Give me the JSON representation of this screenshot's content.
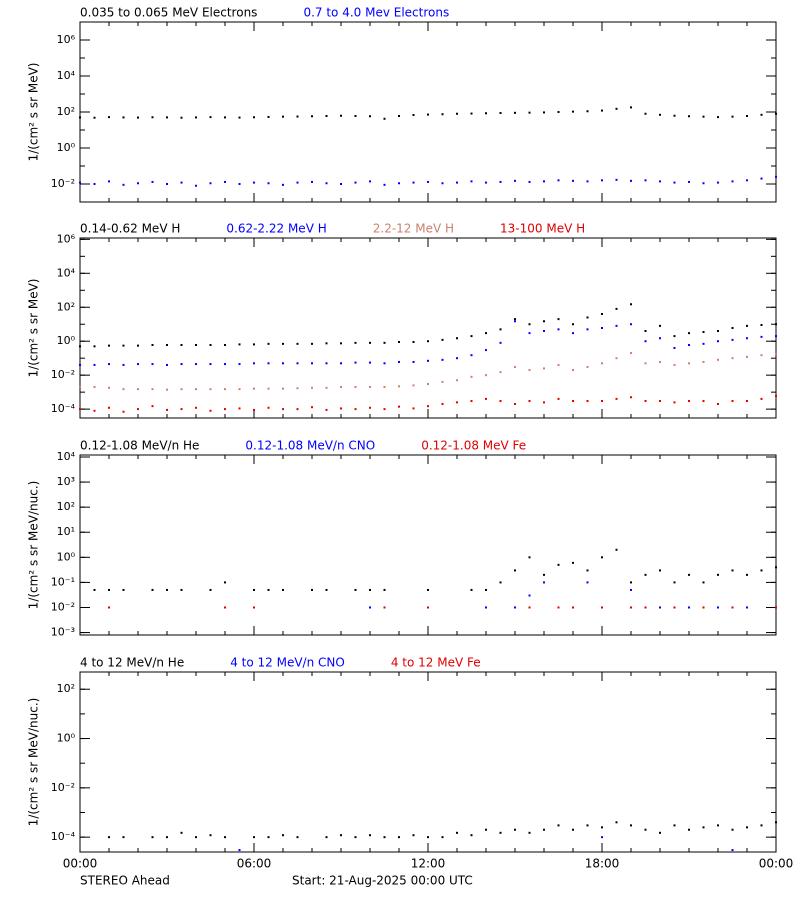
{
  "chart_data": [
    {
      "type": "scatter",
      "log_y": true,
      "ylabel": "1/(cm² s sr MeV)",
      "x": [
        0,
        0.5,
        1,
        1.5,
        2,
        2.5,
        3,
        3.5,
        4,
        4.5,
        5,
        5.5,
        6,
        6.5,
        7,
        7.5,
        8,
        8.5,
        9,
        9.5,
        10,
        10.5,
        11,
        11.5,
        12,
        12.5,
        13,
        13.5,
        14,
        14.5,
        15,
        15.5,
        16,
        16.5,
        17,
        17.5,
        18,
        18.5,
        19,
        19.5,
        20,
        20.5,
        21,
        21.5,
        22,
        22.5,
        23,
        23.5,
        24
      ],
      "xlim": [
        0,
        24
      ],
      "xticks": [
        0,
        6,
        12,
        18,
        24
      ],
      "ylim": [
        0.001,
        10000000
      ],
      "yticks": [
        {
          "value": 0.01,
          "label": "10⁻²"
        },
        {
          "value": 1,
          "label": "10⁰"
        },
        {
          "value": 100,
          "label": "10²"
        },
        {
          "value": 10000,
          "label": "10⁴"
        },
        {
          "value": 1000000,
          "label": "10⁶"
        }
      ],
      "series": [
        {
          "name": "0.035 to 0.065 MeV Electrons",
          "color": "#000000",
          "values": [
            50,
            48,
            52,
            50,
            49,
            51,
            50,
            48,
            50,
            52,
            50,
            49,
            51,
            53,
            55,
            56,
            58,
            60,
            62,
            60,
            58,
            42,
            60,
            68,
            72,
            75,
            80,
            82,
            85,
            88,
            90,
            92,
            95,
            100,
            105,
            110,
            120,
            150,
            180,
            80,
            70,
            62,
            58,
            55,
            52,
            55,
            60,
            70,
            80
          ]
        },
        {
          "name": "0.7 to 4.0 Mev Electrons",
          "color": "#0000ff",
          "values": [
            0.012,
            0.01,
            0.014,
            0.009,
            0.011,
            0.013,
            0.01,
            0.012,
            0.008,
            0.011,
            0.013,
            0.01,
            0.012,
            0.011,
            0.009,
            0.012,
            0.013,
            0.011,
            0.01,
            0.012,
            0.014,
            0.009,
            0.011,
            0.012,
            0.013,
            0.011,
            0.012,
            0.014,
            0.012,
            0.013,
            0.015,
            0.013,
            0.014,
            0.016,
            0.015,
            0.014,
            0.016,
            0.017,
            0.015,
            0.016,
            0.014,
            0.012,
            0.013,
            0.011,
            0.012,
            0.014,
            0.016,
            0.02,
            0.025
          ]
        }
      ]
    },
    {
      "type": "scatter",
      "log_y": true,
      "ylabel": "1/(cm² s sr MeV)",
      "x": [
        0,
        0.5,
        1,
        1.5,
        2,
        2.5,
        3,
        3.5,
        4,
        4.5,
        5,
        5.5,
        6,
        6.5,
        7,
        7.5,
        8,
        8.5,
        9,
        9.5,
        10,
        10.5,
        11,
        11.5,
        12,
        12.5,
        13,
        13.5,
        14,
        14.5,
        15,
        15.5,
        16,
        16.5,
        17,
        17.5,
        18,
        18.5,
        19,
        19.5,
        20,
        20.5,
        21,
        21.5,
        22,
        22.5,
        23,
        23.5,
        24
      ],
      "xlim": [
        0,
        24
      ],
      "xticks": [
        0,
        6,
        12,
        18,
        24
      ],
      "ylim": [
        3e-05,
        1200000
      ],
      "yticks": [
        {
          "value": 0.0001,
          "label": "10⁻⁴"
        },
        {
          "value": 0.01,
          "label": "10⁻²"
        },
        {
          "value": 1,
          "label": "10⁰"
        },
        {
          "value": 100,
          "label": "10²"
        },
        {
          "value": 10000,
          "label": "10⁴"
        },
        {
          "value": 1000000,
          "label": "10⁶"
        }
      ],
      "series": [
        {
          "name": "0.14-0.62 MeV H",
          "color": "#000000",
          "values": [
            0.5,
            0.5,
            0.55,
            0.55,
            0.55,
            0.6,
            0.6,
            0.6,
            0.6,
            0.6,
            0.6,
            0.65,
            0.65,
            0.7,
            0.7,
            0.7,
            0.7,
            0.75,
            0.75,
            0.8,
            0.8,
            0.8,
            0.9,
            0.9,
            1,
            1.2,
            1.5,
            2,
            3,
            5,
            20,
            10,
            15,
            20,
            10,
            25,
            40,
            80,
            150,
            4,
            8,
            2,
            3,
            3.5,
            4,
            6,
            8,
            9,
            10
          ]
        },
        {
          "name": "0.62-2.22 MeV H",
          "color": "#0000ff",
          "values": [
            0.04,
            0.04,
            0.045,
            0.04,
            0.045,
            0.045,
            0.04,
            0.045,
            0.045,
            0.045,
            0.045,
            0.045,
            0.05,
            0.05,
            0.05,
            0.05,
            0.05,
            0.05,
            0.05,
            0.055,
            0.055,
            0.05,
            0.06,
            0.06,
            0.07,
            0.08,
            0.1,
            0.15,
            0.3,
            0.8,
            15,
            3,
            4,
            5,
            3,
            5,
            6,
            8,
            10,
            1,
            1.5,
            0.4,
            0.6,
            0.7,
            1,
            1.2,
            1.5,
            1.8,
            2
          ]
        },
        {
          "name": "2.2-12 MeV H",
          "color": "#c8826e",
          "values": [
            0.002,
            0.002,
            0.0018,
            0.0015,
            0.0015,
            0.0015,
            0.0014,
            0.0015,
            0.0015,
            0.0015,
            0.0015,
            0.0015,
            0.0016,
            0.0016,
            0.0016,
            0.0017,
            0.0018,
            0.0018,
            0.002,
            0.002,
            0.002,
            0.002,
            0.0022,
            0.0025,
            0.003,
            0.004,
            0.005,
            0.008,
            0.01,
            0.015,
            0.03,
            0.02,
            0.025,
            0.04,
            0.02,
            0.03,
            0.05,
            0.1,
            0.2,
            0.05,
            0.06,
            0.04,
            0.05,
            0.06,
            0.08,
            0.1,
            0.12,
            0.15,
            0.18
          ]
        },
        {
          "name": "13-100 MeV H",
          "color": "#e00000",
          "values": [
            0.0001,
            8e-05,
            0.00012,
            7e-05,
            0.0001,
            0.00015,
            9e-05,
            0.0001,
            0.00012,
            8e-05,
            0.0001,
            0.00011,
            9e-05,
            0.00012,
            0.0001,
            0.0001,
            0.00013,
            9e-05,
            0.00011,
            0.0001,
            0.00012,
            0.0001,
            0.00014,
            0.00011,
            0.00015,
            0.0002,
            0.00025,
            0.0003,
            0.0004,
            0.0003,
            0.0002,
            0.0003,
            0.00025,
            0.0004,
            0.0003,
            0.0003,
            0.0003,
            0.0004,
            0.0005,
            0.0003,
            0.0003,
            0.00025,
            0.0003,
            0.0003,
            0.0002,
            0.0003,
            0.0003,
            0.0004,
            0.0006
          ]
        }
      ]
    },
    {
      "type": "scatter",
      "log_y": true,
      "ylabel": "1/(cm² s sr MeV/nuc.)",
      "x": [
        0,
        0.5,
        1,
        1.5,
        2,
        2.5,
        3,
        3.5,
        4,
        4.5,
        5,
        5.5,
        6,
        6.5,
        7,
        7.5,
        8,
        8.5,
        9,
        9.5,
        10,
        10.5,
        11,
        11.5,
        12,
        12.5,
        13,
        13.5,
        14,
        14.5,
        15,
        15.5,
        16,
        16.5,
        17,
        17.5,
        18,
        18.5,
        19,
        19.5,
        20,
        20.5,
        21,
        21.5,
        22,
        22.5,
        23,
        23.5,
        24
      ],
      "xlim": [
        0,
        24
      ],
      "xticks": [
        0,
        6,
        12,
        18,
        24
      ],
      "ylim": [
        0.0008,
        12000
      ],
      "yticks": [
        {
          "value": 0.001,
          "label": "10⁻³"
        },
        {
          "value": 0.01,
          "label": "10⁻²"
        },
        {
          "value": 0.1,
          "label": "10⁻¹"
        },
        {
          "value": 1,
          "label": "10⁰"
        },
        {
          "value": 10,
          "label": "10¹"
        },
        {
          "value": 100,
          "label": "10²"
        },
        {
          "value": 1000,
          "label": "10³"
        },
        {
          "value": 10000,
          "label": "10⁴"
        }
      ],
      "series": [
        {
          "name": "0.12-1.08 MeV/n He",
          "color": "#000000",
          "values": [
            null,
            0.05,
            0.05,
            0.05,
            null,
            0.05,
            0.05,
            0.05,
            null,
            0.05,
            0.1,
            null,
            0.05,
            0.05,
            0.05,
            null,
            0.05,
            0.05,
            null,
            0.05,
            0.05,
            0.05,
            null,
            null,
            0.05,
            null,
            null,
            0.05,
            0.05,
            0.1,
            0.3,
            1,
            0.2,
            0.5,
            0.6,
            0.3,
            1,
            2,
            0.1,
            0.2,
            0.3,
            0.1,
            0.2,
            0.1,
            0.2,
            0.3,
            0.2,
            0.3,
            0.4
          ]
        },
        {
          "name": "0.12-1.08 MeV/n CNO",
          "color": "#0000ff",
          "values": [
            null,
            null,
            null,
            null,
            null,
            null,
            null,
            null,
            null,
            null,
            null,
            null,
            null,
            null,
            null,
            null,
            null,
            null,
            null,
            null,
            0.01,
            null,
            null,
            null,
            null,
            null,
            null,
            null,
            0.01,
            null,
            0.01,
            0.03,
            0.1,
            null,
            0.01,
            0.1,
            0.01,
            null,
            0.05,
            null,
            0.01,
            null,
            0.01,
            null,
            0.01,
            null,
            0.01,
            null,
            0.01
          ]
        },
        {
          "name": "0.12-1.08 MeV Fe",
          "color": "#e00000",
          "values": [
            null,
            null,
            0.01,
            null,
            null,
            null,
            null,
            null,
            null,
            null,
            0.01,
            null,
            0.01,
            null,
            null,
            null,
            null,
            null,
            null,
            null,
            null,
            0.01,
            null,
            null,
            0.01,
            null,
            null,
            null,
            null,
            null,
            null,
            0.01,
            null,
            0.01,
            0.01,
            null,
            0.01,
            null,
            0.01,
            0.01,
            null,
            0.01,
            null,
            0.01,
            null,
            0.01,
            null,
            null,
            0.01
          ]
        }
      ]
    },
    {
      "type": "scatter",
      "log_y": true,
      "ylabel": "1/(cm² s sr MeV/nuc.)",
      "x": [
        0,
        0.5,
        1,
        1.5,
        2,
        2.5,
        3,
        3.5,
        4,
        4.5,
        5,
        5.5,
        6,
        6.5,
        7,
        7.5,
        8,
        8.5,
        9,
        9.5,
        10,
        10.5,
        11,
        11.5,
        12,
        12.5,
        13,
        13.5,
        14,
        14.5,
        15,
        15.5,
        16,
        16.5,
        17,
        17.5,
        18,
        18.5,
        19,
        19.5,
        20,
        20.5,
        21,
        21.5,
        22,
        22.5,
        23,
        23.5,
        24
      ],
      "xlim": [
        0,
        24
      ],
      "xticks": [
        {
          "value": 0,
          "label": "00:00"
        },
        {
          "value": 6,
          "label": "06:00"
        },
        {
          "value": 12,
          "label": "12:00"
        },
        {
          "value": 18,
          "label": "18:00"
        },
        {
          "value": 24,
          "label": "00:00"
        }
      ],
      "ylim": [
        2.5e-05,
        500
      ],
      "yticks": [
        {
          "value": 0.0001,
          "label": "10⁻⁴"
        },
        {
          "value": 0.01,
          "label": "10⁻²"
        },
        {
          "value": 1,
          "label": "10⁰"
        },
        {
          "value": 100,
          "label": "10²"
        }
      ],
      "series": [
        {
          "name": "4 to 12 MeV/n He",
          "color": "#000000",
          "values": [
            null,
            null,
            0.0001,
            0.0001,
            null,
            0.0001,
            0.0001,
            0.00015,
            0.0001,
            0.00012,
            0.0001,
            null,
            0.0001,
            0.0001,
            0.00012,
            0.0001,
            null,
            0.0001,
            0.00012,
            0.0001,
            0.00012,
            0.0001,
            0.0001,
            0.00012,
            0.0001,
            0.0001,
            0.00015,
            0.00012,
            0.0002,
            0.00015,
            0.0002,
            0.00015,
            0.0002,
            0.0003,
            0.0002,
            0.0003,
            0.00025,
            0.0004,
            0.0003,
            0.0002,
            0.00015,
            0.0003,
            0.0002,
            0.00025,
            0.0003,
            0.0002,
            0.00025,
            0.0003,
            0.0004
          ]
        },
        {
          "name": "4 to 12 MeV/n CNO",
          "color": "#0000ff",
          "values": [
            null,
            null,
            null,
            null,
            null,
            null,
            null,
            null,
            null,
            null,
            null,
            3e-05,
            null,
            null,
            null,
            null,
            null,
            null,
            null,
            null,
            null,
            null,
            null,
            null,
            null,
            null,
            null,
            null,
            null,
            null,
            null,
            null,
            null,
            null,
            null,
            null,
            0.0001,
            null,
            null,
            null,
            null,
            null,
            null,
            null,
            null,
            3e-05,
            null,
            null,
            null
          ]
        },
        {
          "name": "4 to 12 MeV Fe",
          "color": "#e00000",
          "values": [
            null,
            null,
            null,
            null,
            null,
            null,
            null,
            null,
            null,
            null,
            null,
            null,
            null,
            null,
            null,
            null,
            null,
            null,
            null,
            null,
            null,
            null,
            null,
            null,
            null,
            null,
            null,
            null,
            null,
            null,
            null,
            null,
            null,
            null,
            null,
            null,
            null,
            null,
            null,
            null,
            null,
            null,
            null,
            null,
            null,
            null,
            null,
            null,
            null
          ]
        }
      ]
    }
  ],
  "footer": {
    "left": "STEREO Ahead",
    "center": "Start: 21-Aug-2025 00:00 UTC"
  }
}
